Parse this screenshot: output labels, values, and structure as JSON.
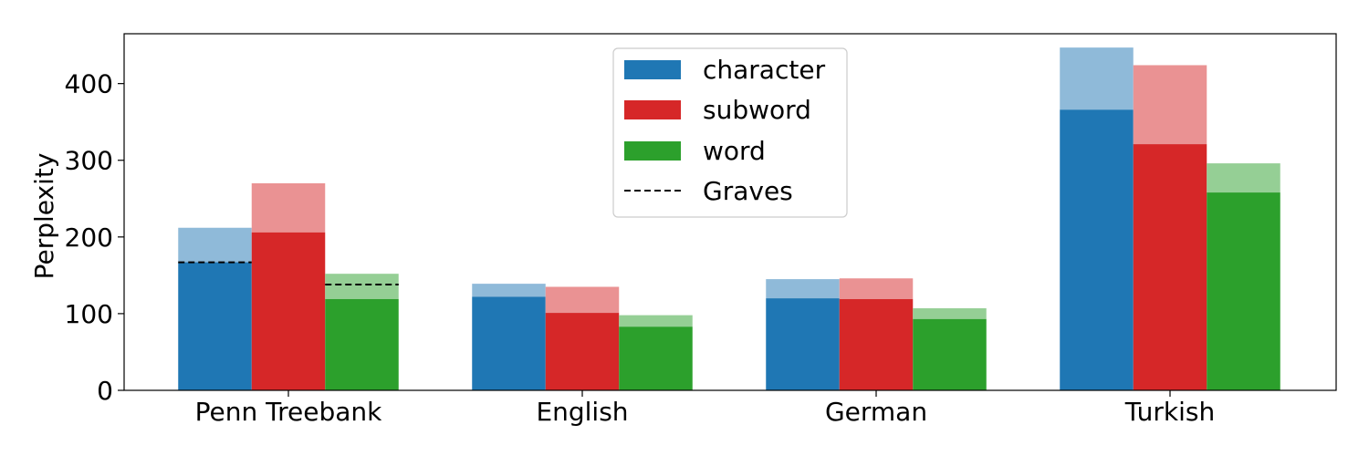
{
  "chart_data": {
    "type": "bar",
    "title": "",
    "xlabel": "",
    "ylabel": "Perplexity",
    "ylim": [
      0,
      465
    ],
    "yticks": [
      0,
      100,
      200,
      300,
      400
    ],
    "categories": [
      "Penn Treebank",
      "English",
      "German",
      "Turkish"
    ],
    "series": [
      {
        "name": "character",
        "color": "#1f77b4",
        "light_color": "#8fbad9",
        "values": [
          167,
          122,
          120,
          366
        ],
        "upper_values": [
          212,
          139,
          145,
          447
        ]
      },
      {
        "name": "subword",
        "color": "#d62728",
        "light_color": "#ea9293",
        "values": [
          206,
          101,
          119,
          321
        ],
        "upper_values": [
          270,
          135,
          146,
          424
        ]
      },
      {
        "name": "word",
        "color": "#2ca02c",
        "light_color": "#95cf95",
        "values": [
          119,
          83,
          93,
          258
        ],
        "upper_values": [
          152,
          98,
          107,
          296
        ]
      }
    ],
    "reference_lines": [
      {
        "name": "Graves",
        "category": "Penn Treebank",
        "series": "character",
        "value": 167
      },
      {
        "name": "Graves",
        "category": "Penn Treebank",
        "series": "word",
        "value": 138
      }
    ],
    "legend": {
      "placement": "top-center",
      "entries": [
        "character",
        "subword",
        "word",
        "Graves"
      ]
    },
    "grid": false
  }
}
